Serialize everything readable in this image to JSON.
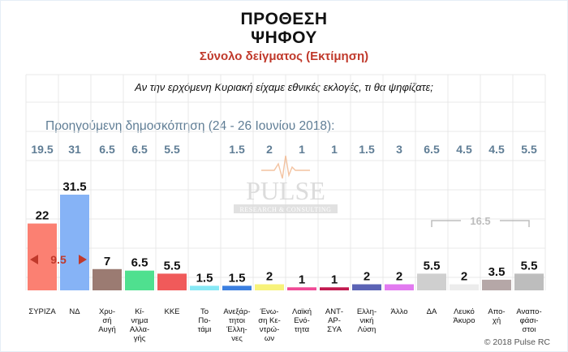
{
  "header": {
    "title_line1": "ΠΡΟΘΕΣΗ",
    "title_line2": "ΨΗΦΟΥ",
    "subtitle": "Σύνολο δείγματος   (Εκτίμηση)",
    "question": "Αν την ερχόμενη Κυριακή είχαμε εθνικές εκλογές, τι θα ψηφίζατε;"
  },
  "previous_poll": {
    "label": "Προηγούμενη δημοσκόπηση (24 - 26 Ιουνίου 2018):"
  },
  "logo": {
    "text": "PULSE",
    "tagline": "RESEARCH & CONSULTING"
  },
  "credit": "© 2018 Pulse RC",
  "colors": {
    "subtitle": "#c0392b",
    "previous_values": "#5f7d95",
    "lead_annotation": "#c0392b",
    "bracket_annotation": "#bdbdbd"
  },
  "chart_data": {
    "type": "bar",
    "title": "ΠΡΟΘΕΣΗ ΨΗΦΟΥ",
    "subtitle": "Σύνολο δείγματος   (Εκτίμηση)",
    "xlabel": "",
    "ylabel": "",
    "ylim": [
      0,
      35
    ],
    "grid": true,
    "categories": [
      [
        "ΣΥΡΙΖΑ"
      ],
      [
        "ΝΔ"
      ],
      [
        "Χρυ-",
        "σή",
        "Αυγή"
      ],
      [
        "Κί-",
        "νημα",
        "Αλλα-",
        "γής"
      ],
      [
        "ΚΚΕ"
      ],
      [
        "Το",
        "Πο-",
        "τάμι"
      ],
      [
        "Ανεξάρ-",
        "τητοι",
        "Έλλη-",
        "νες"
      ],
      [
        "Ένω-",
        "ση Κε-",
        "ντρώ-",
        "ων"
      ],
      [
        "Λαϊκή",
        "Ενό-",
        "τητα"
      ],
      [
        "ΑΝΤ-",
        "ΑΡ-",
        "ΣΥΑ"
      ],
      [
        "Ελλη-",
        "νική",
        "Λύση"
      ],
      [
        "Άλλο"
      ],
      [
        "ΔΑ"
      ],
      [
        "Λευκό",
        "Άκυρο"
      ],
      [
        "Απο-",
        "χή"
      ],
      [
        "Αναπο-",
        "φάσι-",
        "στοι"
      ]
    ],
    "values": [
      22,
      31.5,
      7,
      6.5,
      5.5,
      1.5,
      1.5,
      2,
      1,
      1,
      2,
      2,
      5.5,
      2,
      3.5,
      5.5
    ],
    "value_labels": [
      "22",
      "31.5",
      "7",
      "6.5",
      "5.5",
      "1.5",
      "1.5",
      "2",
      "1",
      "1",
      "2",
      "2",
      "5.5",
      "2",
      "3.5",
      "5.5"
    ],
    "previous_values": [
      "19.5",
      "31",
      "6.5",
      "6.5",
      "5.5",
      "",
      "1.5",
      "2",
      "1",
      "1",
      "1.5",
      "3",
      "6.5",
      "4.5",
      "4.5",
      "5.5"
    ],
    "colors": [
      "#fb8072",
      "#86b3f6",
      "#9b7b72",
      "#4fe08f",
      "#f05a5a",
      "#87e8f5",
      "#3b7fe0",
      "#f7f27a",
      "#f04a96",
      "#c21a4f",
      "#5b63b5",
      "#e27af0",
      "#cfcfcf",
      "#ececec",
      "#b5a7a7",
      "#bdbdbd"
    ],
    "annotations": [
      {
        "type": "lead",
        "text": "9.5",
        "between": [
          "ΣΥΡΙΖΑ",
          "ΝΔ"
        ]
      },
      {
        "type": "bracket",
        "text": "16.5",
        "spans": [
          "ΔΑ",
          "Λευκό Άκυρο",
          "Αποχή",
          "Αναποφάσιστοι"
        ]
      }
    ]
  }
}
